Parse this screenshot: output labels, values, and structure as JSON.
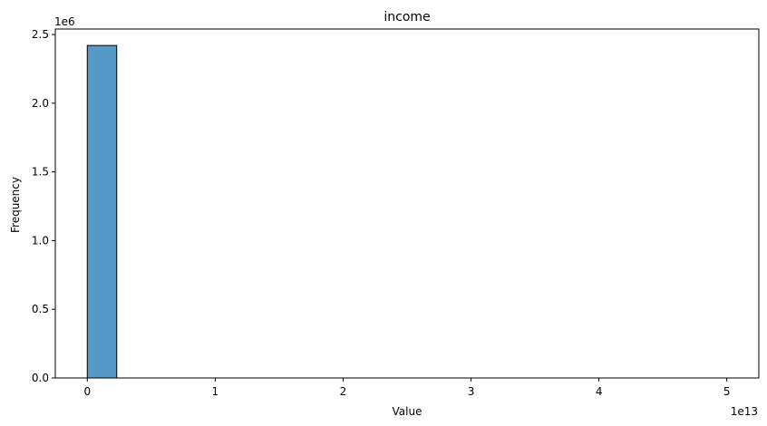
{
  "chart_data": {
    "type": "bar",
    "title": "income",
    "xlabel": "Value",
    "ylabel": "Frequency",
    "x_offset_label": "1e13",
    "y_offset_label": "1e6",
    "xlim": [
      -0.25,
      5.25
    ],
    "ylim": [
      0,
      2.54
    ],
    "x_ticks": [
      0,
      1,
      2,
      3,
      4,
      5
    ],
    "x_tick_labels": [
      "0",
      "1",
      "2",
      "3",
      "4",
      "5"
    ],
    "y_ticks": [
      0,
      0.5,
      1.0,
      1.5,
      2.0,
      2.5
    ],
    "y_tick_labels": [
      "0.0",
      "0.5",
      "1.0",
      "1.5",
      "2.0",
      "2.5"
    ],
    "bins": [
      {
        "x0": 0.0,
        "x1": 0.23,
        "value": 2.42
      }
    ],
    "bar_color": "#5499c7",
    "grid": false
  }
}
